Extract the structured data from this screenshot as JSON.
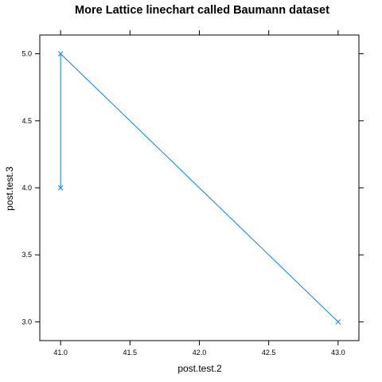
{
  "chart_data": {
    "type": "line",
    "title": "More Lattice linechart called Baumann dataset",
    "xlabel": "post.test.2",
    "ylabel": "post.test.3",
    "xlim": [
      40.85,
      43.15
    ],
    "ylim": [
      2.86,
      5.14
    ],
    "x_ticks": [
      "41.0",
      "41.5",
      "42.0",
      "42.5",
      "43.0"
    ],
    "y_ticks": [
      "3.0",
      "3.5",
      "4.0",
      "4.5",
      "5.0"
    ],
    "grid": false,
    "legend": "none",
    "series": [
      {
        "x": [
          41.0,
          41.0,
          43.0
        ],
        "y": [
          4.0,
          5.0,
          3.0
        ],
        "marker": "x",
        "color": "#0080ff"
      }
    ]
  }
}
